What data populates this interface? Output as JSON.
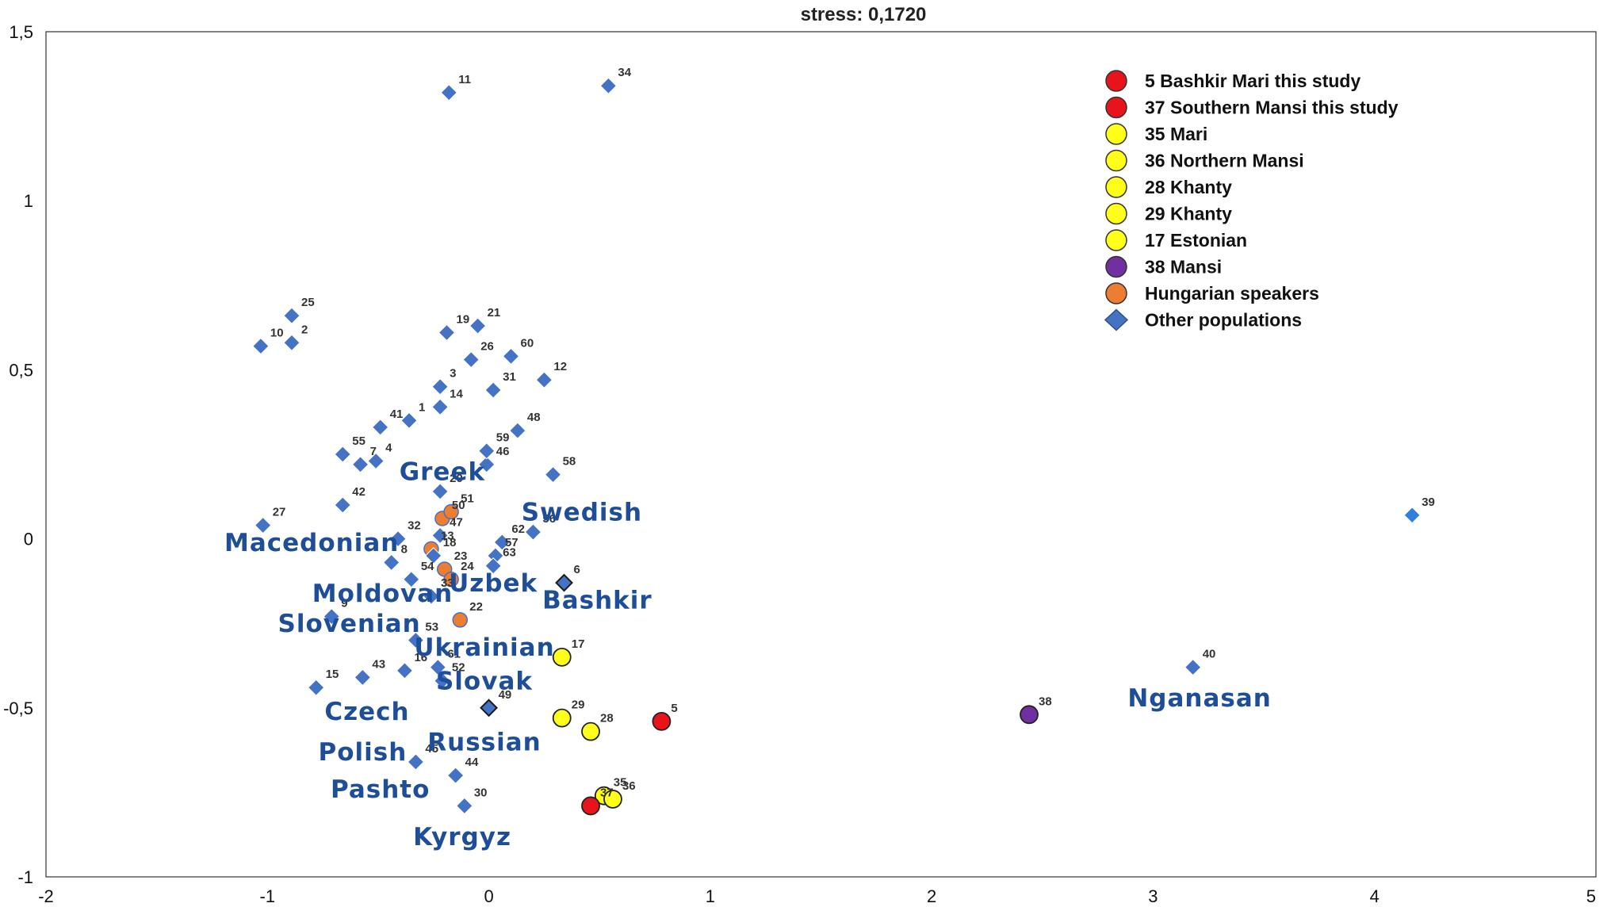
{
  "chart_data": {
    "type": "scatter",
    "title": "stress: 0,1720",
    "xlabel": "",
    "ylabel": "",
    "xlim": [
      -2,
      5
    ],
    "ylim": [
      -1,
      1.5
    ],
    "xticks": [
      {
        "v": -2,
        "label": "-2"
      },
      {
        "v": -1,
        "label": "-1"
      },
      {
        "v": 0,
        "label": "0"
      },
      {
        "v": 1,
        "label": "1"
      },
      {
        "v": 2,
        "label": "2"
      },
      {
        "v": 3,
        "label": "3"
      },
      {
        "v": 4,
        "label": "4"
      },
      {
        "v": 5,
        "label": "5"
      }
    ],
    "yticks": [
      {
        "v": 1.5,
        "label": "1,5"
      },
      {
        "v": 1,
        "label": "1"
      },
      {
        "v": 0.5,
        "label": "0,5"
      },
      {
        "v": 0,
        "label": "0"
      },
      {
        "v": -0.5,
        "label": "-0,5"
      },
      {
        "v": -1,
        "label": "-1"
      }
    ],
    "grid": false,
    "legend_position": "top-right",
    "colors": {
      "red": "#e8141b",
      "yellow": "#ffff1a",
      "purple": "#7030a0",
      "orange": "#ed7d31",
      "blue": "#4472c4",
      "group_label": "#1f4e99"
    },
    "legend": [
      {
        "label": "5 Bashkir Mari this study",
        "shape": "circle",
        "color": "#e8141b"
      },
      {
        "label": "37 Southern Mansi this study",
        "shape": "circle",
        "color": "#e8141b"
      },
      {
        "label": "35 Mari",
        "shape": "circle",
        "color": "#ffff1a"
      },
      {
        "label": "36 Northern Mansi",
        "shape": "circle",
        "color": "#ffff1a"
      },
      {
        "label": "28 Khanty",
        "shape": "circle",
        "color": "#ffff1a"
      },
      {
        "label": "29 Khanty",
        "shape": "circle",
        "color": "#ffff1a"
      },
      {
        "label": "17 Estonian",
        "shape": "circle",
        "color": "#ffff1a"
      },
      {
        "label": "38 Mansi",
        "shape": "circle",
        "color": "#7030a0"
      },
      {
        "label": "Hungarian speakers",
        "shape": "circle",
        "color": "#ed7d31"
      },
      {
        "label": "Other populations",
        "shape": "diamond",
        "color": "#4472c4"
      }
    ],
    "points": [
      {
        "id": "1",
        "x": -0.36,
        "y": 0.35,
        "kind": "other"
      },
      {
        "id": "2",
        "x": -0.89,
        "y": 0.58,
        "kind": "other"
      },
      {
        "id": "3",
        "x": -0.22,
        "y": 0.45,
        "kind": "other"
      },
      {
        "id": "4",
        "x": -0.51,
        "y": 0.23,
        "kind": "other"
      },
      {
        "id": "5",
        "x": 0.78,
        "y": -0.54,
        "kind": "red"
      },
      {
        "id": "6",
        "x": 0.34,
        "y": -0.13,
        "kind": "other_dark"
      },
      {
        "id": "7",
        "x": -0.58,
        "y": 0.22,
        "kind": "other"
      },
      {
        "id": "8",
        "x": -0.44,
        "y": -0.07,
        "kind": "other"
      },
      {
        "id": "9",
        "x": -0.71,
        "y": -0.23,
        "kind": "other"
      },
      {
        "id": "10",
        "x": -1.03,
        "y": 0.57,
        "kind": "other"
      },
      {
        "id": "11",
        "x": -0.18,
        "y": 1.32,
        "kind": "other"
      },
      {
        "id": "12",
        "x": 0.25,
        "y": 0.47,
        "kind": "other"
      },
      {
        "id": "13",
        "x": -0.26,
        "y": -0.03,
        "kind": "hungarian"
      },
      {
        "id": "14",
        "x": -0.22,
        "y": 0.39,
        "kind": "other"
      },
      {
        "id": "15",
        "x": -0.78,
        "y": -0.44,
        "kind": "other"
      },
      {
        "id": "16",
        "x": -0.38,
        "y": -0.39,
        "kind": "other"
      },
      {
        "id": "17",
        "x": 0.33,
        "y": -0.35,
        "kind": "yellow"
      },
      {
        "id": "18",
        "x": -0.25,
        "y": -0.05,
        "kind": "other"
      },
      {
        "id": "19",
        "x": -0.19,
        "y": 0.61,
        "kind": "other"
      },
      {
        "id": "20",
        "x": -0.22,
        "y": 0.14,
        "kind": "other"
      },
      {
        "id": "21",
        "x": -0.05,
        "y": 0.63,
        "kind": "other"
      },
      {
        "id": "22",
        "x": -0.13,
        "y": -0.24,
        "kind": "hungarian"
      },
      {
        "id": "23",
        "x": -0.2,
        "y": -0.09,
        "kind": "hungarian"
      },
      {
        "id": "24",
        "x": -0.17,
        "y": -0.12,
        "kind": "hungarian"
      },
      {
        "id": "25",
        "x": -0.89,
        "y": 0.66,
        "kind": "other"
      },
      {
        "id": "26",
        "x": -0.08,
        "y": 0.53,
        "kind": "other"
      },
      {
        "id": "27",
        "x": -1.02,
        "y": 0.04,
        "kind": "other"
      },
      {
        "id": "28",
        "x": 0.46,
        "y": -0.57,
        "kind": "yellow"
      },
      {
        "id": "29",
        "x": 0.33,
        "y": -0.53,
        "kind": "yellow"
      },
      {
        "id": "30",
        "x": -0.11,
        "y": -0.79,
        "kind": "other"
      },
      {
        "id": "31",
        "x": 0.02,
        "y": 0.44,
        "kind": "other"
      },
      {
        "id": "32",
        "x": -0.41,
        "y": 0.0,
        "kind": "other"
      },
      {
        "id": "33",
        "x": -0.26,
        "y": -0.17,
        "kind": "other"
      },
      {
        "id": "34",
        "x": 0.54,
        "y": 1.34,
        "kind": "other"
      },
      {
        "id": "35",
        "x": 0.52,
        "y": -0.76,
        "kind": "yellow"
      },
      {
        "id": "36",
        "x": 0.56,
        "y": -0.77,
        "kind": "yellow"
      },
      {
        "id": "37",
        "x": 0.46,
        "y": -0.79,
        "kind": "red"
      },
      {
        "id": "38",
        "x": 2.44,
        "y": -0.52,
        "kind": "purple"
      },
      {
        "id": "39",
        "x": 4.17,
        "y": 0.07,
        "kind": "other_bright"
      },
      {
        "id": "40",
        "x": 3.18,
        "y": -0.38,
        "kind": "other"
      },
      {
        "id": "41",
        "x": -0.49,
        "y": 0.33,
        "kind": "other"
      },
      {
        "id": "42",
        "x": -0.66,
        "y": 0.1,
        "kind": "other"
      },
      {
        "id": "43",
        "x": -0.57,
        "y": -0.41,
        "kind": "other"
      },
      {
        "id": "44",
        "x": -0.15,
        "y": -0.7,
        "kind": "other"
      },
      {
        "id": "45",
        "x": -0.33,
        "y": -0.66,
        "kind": "other"
      },
      {
        "id": "46",
        "x": -0.01,
        "y": 0.22,
        "kind": "other"
      },
      {
        "id": "47",
        "x": -0.22,
        "y": 0.01,
        "kind": "other"
      },
      {
        "id": "48",
        "x": 0.13,
        "y": 0.32,
        "kind": "other"
      },
      {
        "id": "49",
        "x": 0.0,
        "y": -0.5,
        "kind": "other_dark"
      },
      {
        "id": "50",
        "x": -0.21,
        "y": 0.06,
        "kind": "hungarian"
      },
      {
        "id": "51",
        "x": -0.17,
        "y": 0.08,
        "kind": "hungarian"
      },
      {
        "id": "52",
        "x": -0.21,
        "y": -0.42,
        "kind": "other"
      },
      {
        "id": "53",
        "x": -0.33,
        "y": -0.3,
        "kind": "other"
      },
      {
        "id": "54",
        "x": -0.35,
        "y": -0.12,
        "kind": "other"
      },
      {
        "id": "55",
        "x": -0.66,
        "y": 0.25,
        "kind": "other"
      },
      {
        "id": "56",
        "x": 0.2,
        "y": 0.02,
        "kind": "other"
      },
      {
        "id": "57",
        "x": 0.03,
        "y": -0.05,
        "kind": "other"
      },
      {
        "id": "58",
        "x": 0.29,
        "y": 0.19,
        "kind": "other"
      },
      {
        "id": "59",
        "x": -0.01,
        "y": 0.26,
        "kind": "other"
      },
      {
        "id": "60",
        "x": 0.1,
        "y": 0.54,
        "kind": "other"
      },
      {
        "id": "61",
        "x": -0.23,
        "y": -0.38,
        "kind": "other"
      },
      {
        "id": "62",
        "x": 0.06,
        "y": -0.01,
        "kind": "other"
      },
      {
        "id": "63",
        "x": 0.02,
        "y": -0.08,
        "kind": "other"
      }
    ],
    "group_labels": [
      {
        "text": "Greek",
        "x": -0.21,
        "y": 0.2
      },
      {
        "text": "Swedish",
        "x": 0.42,
        "y": 0.08
      },
      {
        "text": "Macedonian",
        "x": -0.8,
        "y": -0.01
      },
      {
        "text": "Moldovan",
        "x": -0.48,
        "y": -0.16
      },
      {
        "text": "Uzbek",
        "x": 0.02,
        "y": -0.13
      },
      {
        "text": "Bashkir",
        "x": 0.49,
        "y": -0.18
      },
      {
        "text": "Slovenian",
        "x": -0.63,
        "y": -0.25
      },
      {
        "text": "Ukrainian",
        "x": -0.02,
        "y": -0.32
      },
      {
        "text": "Slovak",
        "x": -0.02,
        "y": -0.42
      },
      {
        "text": "Czech",
        "x": -0.55,
        "y": -0.51
      },
      {
        "text": "Russian",
        "x": -0.02,
        "y": -0.6
      },
      {
        "text": "Polish",
        "x": -0.57,
        "y": -0.63
      },
      {
        "text": "Pashto",
        "x": -0.49,
        "y": -0.74
      },
      {
        "text": "Kyrgyz",
        "x": -0.12,
        "y": -0.88
      },
      {
        "text": "Nganasan",
        "x": 3.21,
        "y": -0.47
      }
    ]
  }
}
